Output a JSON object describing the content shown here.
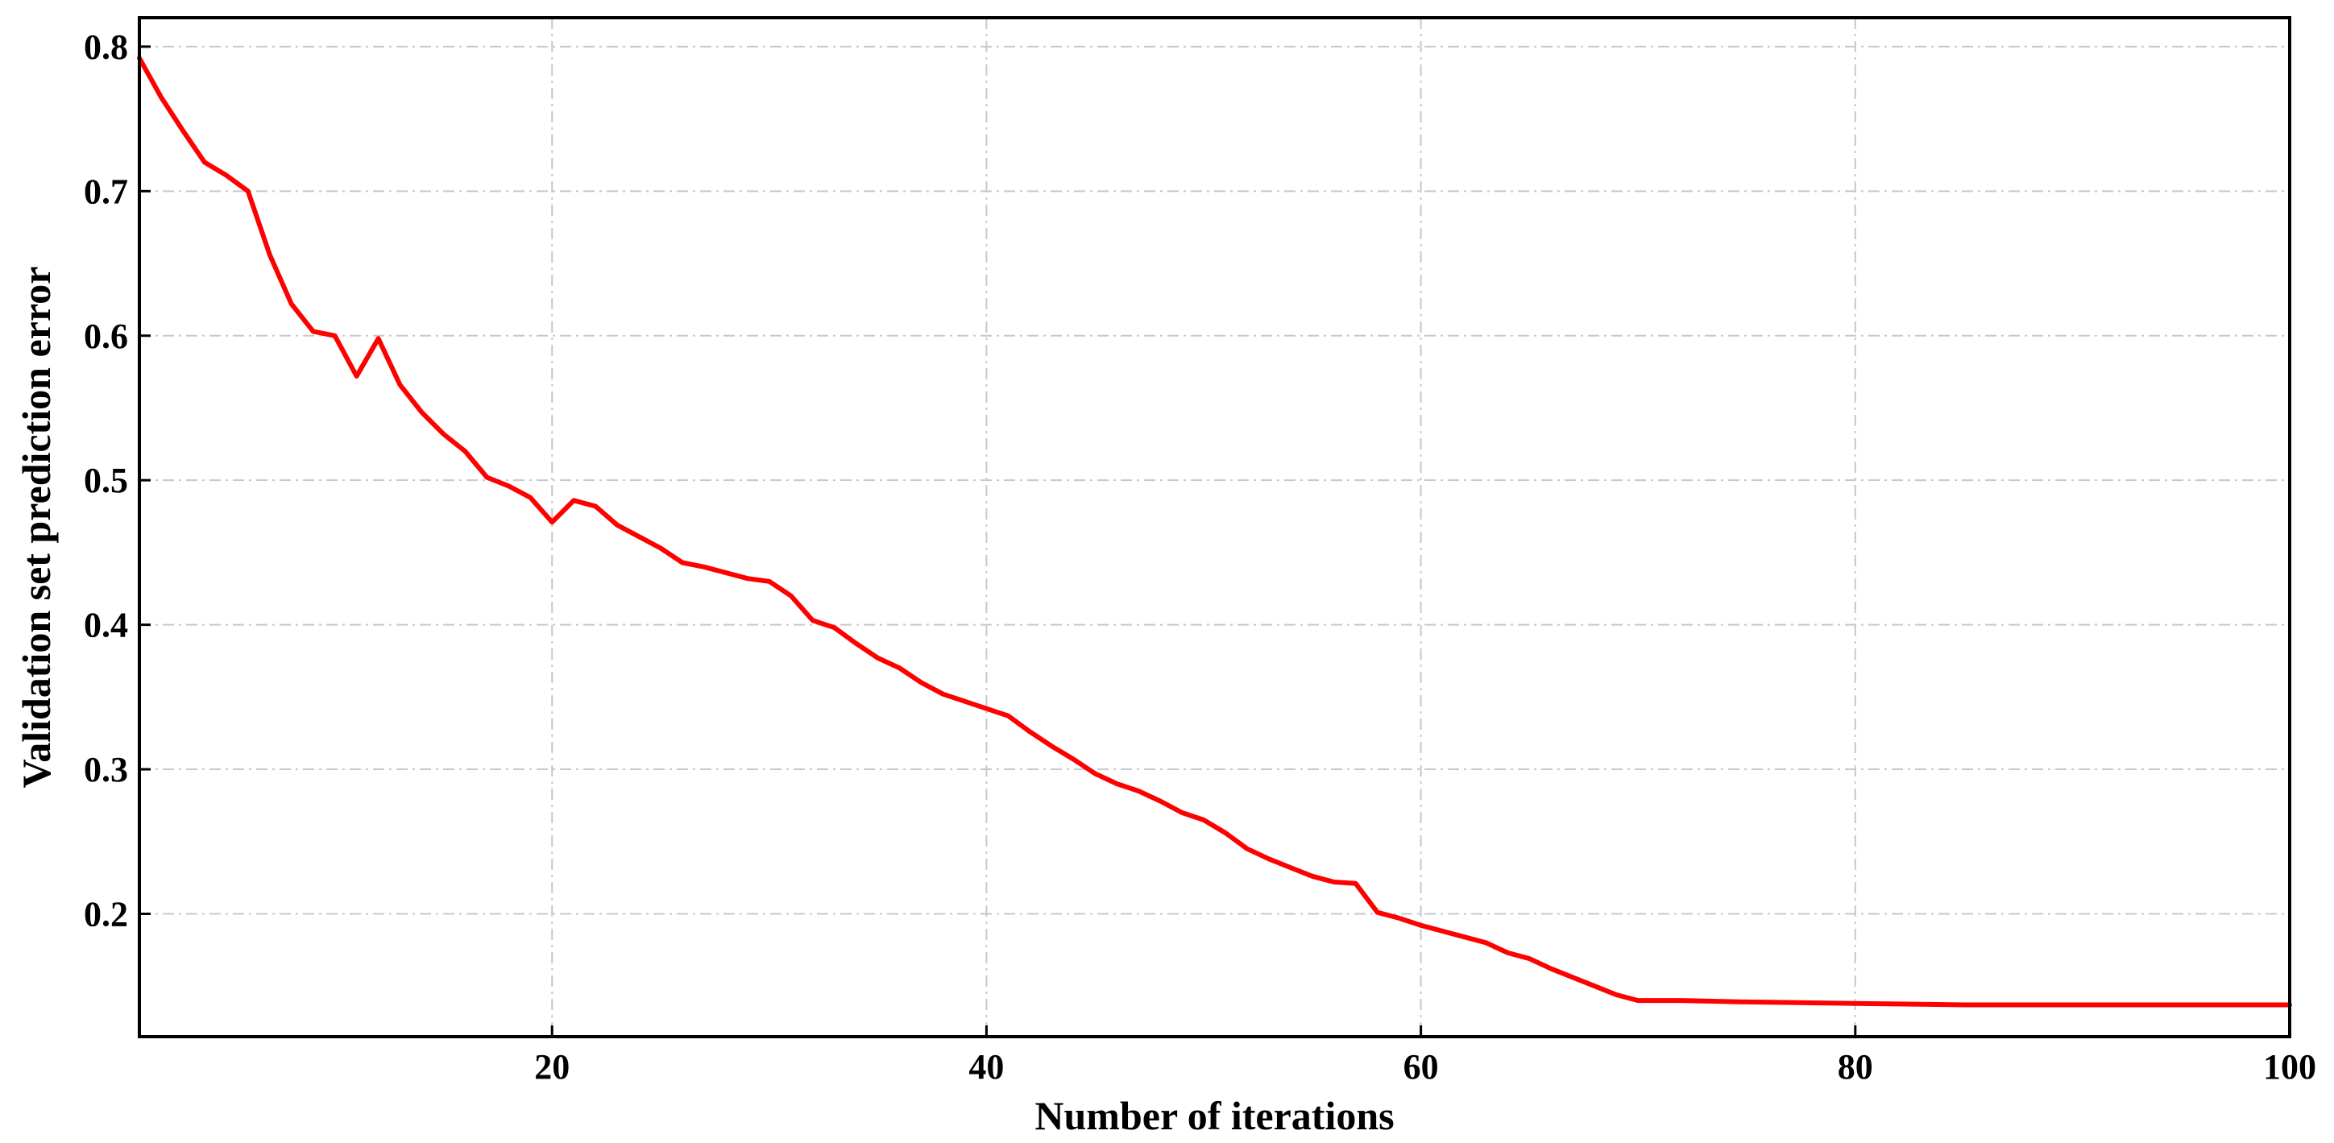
{
  "chart_data": {
    "type": "line",
    "title": "",
    "xlabel": "Number of iterations",
    "ylabel": "Validation set prediction error",
    "xlim": [
      1,
      100
    ],
    "ylim": [
      0.115,
      0.82
    ],
    "xticks": [
      20,
      40,
      60,
      80,
      100
    ],
    "yticks": [
      0.2,
      0.3,
      0.4,
      0.5,
      0.6,
      0.7,
      0.8
    ],
    "xtick_labels": [
      "20",
      "40",
      "60",
      "80",
      "100"
    ],
    "ytick_labels": [
      "0.2",
      "0.3",
      "0.4",
      "0.5",
      "0.6",
      "0.7",
      "0.8"
    ],
    "grid": true,
    "series": [
      {
        "color": "#ff0000",
        "x": [
          1,
          2,
          3,
          4,
          5,
          6,
          7,
          8,
          9,
          10,
          11,
          12,
          13,
          14,
          15,
          16,
          17,
          18,
          19,
          20,
          21,
          22,
          23,
          24,
          25,
          26,
          27,
          28,
          29,
          30,
          31,
          32,
          33,
          34,
          35,
          36,
          37,
          38,
          39,
          40,
          41,
          42,
          43,
          44,
          45,
          46,
          47,
          48,
          49,
          50,
          51,
          52,
          53,
          54,
          55,
          56,
          57,
          58,
          59,
          60,
          61,
          62,
          63,
          64,
          65,
          66,
          67,
          68,
          69,
          70,
          72,
          75,
          80,
          85,
          90,
          95,
          100
        ],
        "values": [
          0.792,
          0.765,
          0.742,
          0.72,
          0.711,
          0.7,
          0.656,
          0.622,
          0.603,
          0.6,
          0.572,
          0.598,
          0.566,
          0.547,
          0.532,
          0.52,
          0.502,
          0.496,
          0.488,
          0.471,
          0.486,
          0.482,
          0.469,
          0.461,
          0.453,
          0.443,
          0.44,
          0.436,
          0.432,
          0.43,
          0.42,
          0.403,
          0.398,
          0.387,
          0.377,
          0.37,
          0.36,
          0.352,
          0.347,
          0.342,
          0.337,
          0.326,
          0.316,
          0.307,
          0.297,
          0.29,
          0.285,
          0.278,
          0.27,
          0.265,
          0.256,
          0.245,
          0.238,
          0.232,
          0.226,
          0.222,
          0.221,
          0.201,
          0.197,
          0.192,
          0.188,
          0.184,
          0.18,
          0.173,
          0.169,
          0.162,
          0.156,
          0.15,
          0.144,
          0.14,
          0.14,
          0.139,
          0.138,
          0.137,
          0.137,
          0.137,
          0.137
        ]
      }
    ]
  }
}
